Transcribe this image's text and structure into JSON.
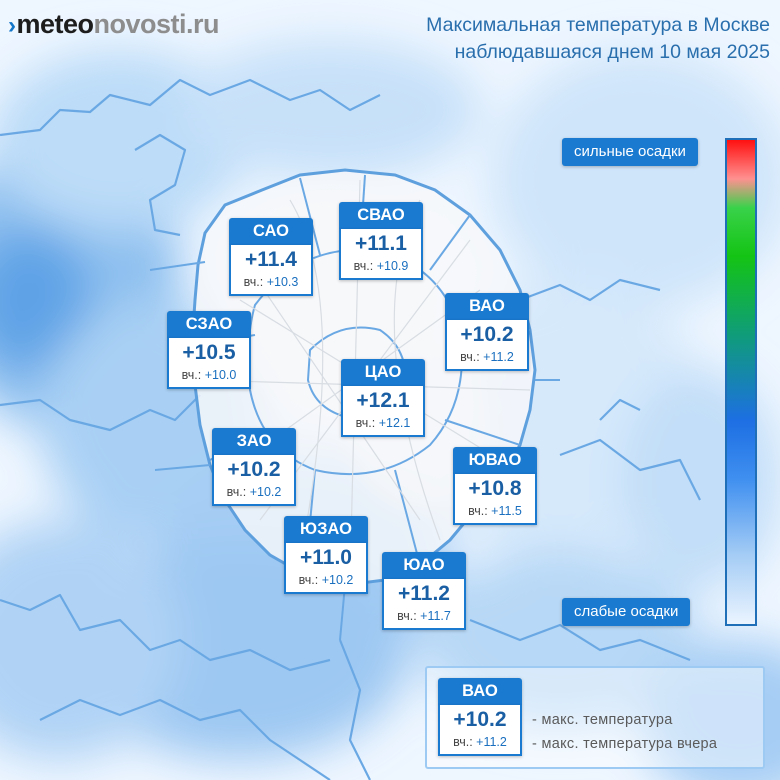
{
  "site": {
    "logo_mark": "›",
    "logo_part1": "meteo",
    "logo_part2": "novosti.ru"
  },
  "title": {
    "line1": "Максимальная температура в Москве",
    "line2": "наблюдавшаяся днем 10 мая 2025"
  },
  "yesterday_prefix": "вч.:",
  "districts": [
    {
      "name": "САО",
      "temp": "+11.4",
      "yesterday": "+10.3"
    },
    {
      "name": "СВАО",
      "temp": "+11.1",
      "yesterday": "+10.9"
    },
    {
      "name": "ВАО",
      "temp": "+10.2",
      "yesterday": "+11.2"
    },
    {
      "name": "СЗАО",
      "temp": "+10.5",
      "yesterday": "+10.0"
    },
    {
      "name": "ЦАО",
      "temp": "+12.1",
      "yesterday": "+12.1"
    },
    {
      "name": "ЗАО",
      "temp": "+10.2",
      "yesterday": "+10.2"
    },
    {
      "name": "ЮВАО",
      "temp": "+10.8",
      "yesterday": "+11.5"
    },
    {
      "name": "ЮЗАО",
      "temp": "+11.0",
      "yesterday": "+10.2"
    },
    {
      "name": "ЮАО",
      "temp": "+11.2",
      "yesterday": "+11.7"
    }
  ],
  "precipitation_legend": {
    "strong": "сильные осадки",
    "weak": "слабые осадки",
    "colors": [
      "#ff1010",
      "#14c414",
      "#1d6fe3",
      "#eaf4ff"
    ]
  },
  "key": {
    "name": "ВАО",
    "temp": "+10.2",
    "yesterday": "+11.2",
    "temp_desc": "- макс. температура",
    "yesterday_desc": "- макс. температура вчера"
  },
  "colors": {
    "accent": "#1a7ad0",
    "title_text": "#2a6fad"
  }
}
